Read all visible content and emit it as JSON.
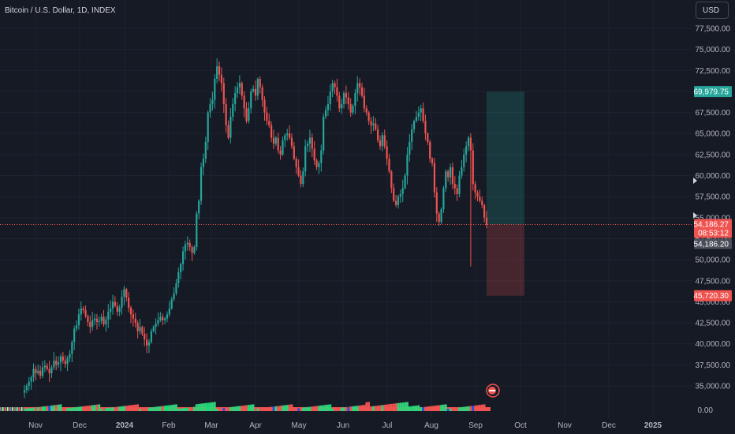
{
  "header": {
    "symbol_title": "Bitcoin / U.S. Dollar, 1D, INDEX",
    "currency": "USD"
  },
  "chart_data": {
    "type": "candlestick",
    "y_axis": {
      "ylim": [
        32500,
        80000
      ],
      "ticks": [
        "35,000.00",
        "37,500.00",
        "40,000.00",
        "42,500.00",
        "45,000.00",
        "47,500.00",
        "50,000.00",
        "52,500.00",
        "55,000.00",
        "57,500.00",
        "60,000.00",
        "62,500.00",
        "65,000.00",
        "67,500.00",
        "70,000.00",
        "72,500.00",
        "75,000.00",
        "77,500.00"
      ]
    },
    "x_axis": {
      "ticks": [
        "Nov",
        "Dec",
        "2024",
        "Feb",
        "Mar",
        "Apr",
        "May",
        "Jun",
        "Jul",
        "Aug",
        "Sep",
        "Oct",
        "Nov",
        "Dec",
        "2025"
      ],
      "bold": [
        "2024",
        "2025"
      ]
    },
    "closes": [
      34500,
      35000,
      35500,
      36000,
      37000,
      36500,
      36800,
      36200,
      37200,
      37400,
      37000,
      36500,
      37200,
      38000,
      37500,
      37800,
      38500,
      38000,
      37600,
      38300,
      38800,
      40200,
      41800,
      42200,
      43500,
      44200,
      44000,
      43300,
      42600,
      42000,
      42800,
      43000,
      42600,
      42700,
      43200,
      42300,
      42900,
      43800,
      44200,
      45000,
      44500,
      43800,
      44300,
      45600,
      46500,
      45500,
      44300,
      43500,
      43000,
      42500,
      41500,
      42000,
      41200,
      40500,
      39800,
      40200,
      41500,
      42000,
      42400,
      42800,
      43200,
      42800,
      43000,
      43500,
      44200,
      45300,
      46000,
      47200,
      48500,
      49500,
      51000,
      51800,
      52000,
      51500,
      50800,
      51500,
      55500,
      57000,
      61000,
      62000,
      64000,
      67500,
      68500,
      69000,
      71500,
      73000,
      72000,
      71000,
      68500,
      66000,
      64500,
      67000,
      68500,
      69800,
      70500,
      71000,
      69500,
      68000,
      66500,
      68000,
      70000,
      70300,
      69500,
      71500,
      70500,
      69000,
      67500,
      66500,
      66000,
      64500,
      63800,
      64500,
      63000,
      62500,
      64200,
      64800,
      65000,
      64500,
      63500,
      62000,
      61000,
      60000,
      59000,
      60500,
      63500,
      63800,
      64500,
      63200,
      61800,
      61000,
      61500,
      63000,
      67000,
      67800,
      68500,
      70000,
      71000,
      70500,
      69500,
      68000,
      68500,
      69800,
      69300,
      68500,
      67500,
      68300,
      69800,
      71000,
      70500,
      69500,
      68000,
      67500,
      66500,
      66000,
      66200,
      65500,
      64200,
      63500,
      64800,
      63500,
      62000,
      60500,
      58500,
      57000,
      56500,
      57500,
      57800,
      58500,
      60000,
      62500,
      64000,
      65500,
      66500,
      67000,
      67500,
      68000,
      66500,
      65000,
      64000,
      62000,
      61500,
      58000,
      55500,
      54500,
      56000,
      58500,
      60500,
      59800,
      61000,
      59000,
      58500,
      57800,
      60000,
      61000,
      62500,
      63500,
      64500,
      63000,
      59000,
      58000,
      57500,
      57000,
      56500,
      55000,
      54186.27
    ],
    "current_price": "54,186.27",
    "countdown": "08:53:12",
    "secondary_price": "54,186.20",
    "position": {
      "entry": 54186.27,
      "target": 69979.75,
      "stop": 45720.3,
      "target_label": "69,979.75",
      "stop_label": "45,720.30"
    },
    "indicator_label": "0.00",
    "colors": {
      "up": "#26a69a",
      "down": "#ef5350",
      "background": "#161a25",
      "grid": "#1f2330"
    }
  }
}
